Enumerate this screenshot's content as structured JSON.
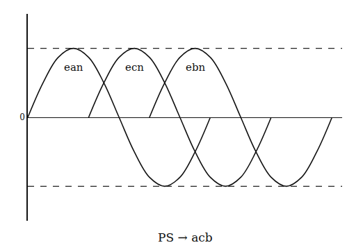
{
  "chart_data": {
    "type": "line",
    "annotation": "PS → acb",
    "xlim": [
      0,
      620
    ],
    "ylim": [
      -1.5,
      1.5
    ],
    "yticks": [
      0
    ],
    "tick_labels": "y",
    "grid": false,
    "series": [
      {
        "name": "ean",
        "color": "#111111",
        "x": [
          0,
          30,
          60,
          90,
          120,
          150,
          180,
          210,
          240,
          270,
          300,
          330,
          360
        ],
        "values": [
          0,
          0.5,
          0.87,
          1,
          0.87,
          0.5,
          0,
          -0.5,
          -0.87,
          -1,
          -0.87,
          -0.5,
          0
        ]
      },
      {
        "name": "ecn",
        "color": "#111111",
        "x": [
          120,
          150,
          180,
          210,
          240,
          270,
          300,
          330,
          360,
          390,
          420,
          450,
          480
        ],
        "values": [
          0,
          0.5,
          0.87,
          1,
          0.87,
          0.5,
          0,
          -0.5,
          -0.87,
          -1,
          -0.87,
          -0.5,
          0
        ]
      },
      {
        "name": "ebn",
        "color": "#111111",
        "x": [
          240,
          270,
          300,
          330,
          360,
          390,
          420,
          450,
          480,
          510,
          540,
          570,
          600
        ],
        "values": [
          0,
          0.5,
          0.87,
          1,
          0.87,
          0.5,
          0,
          -0.5,
          -0.87,
          -1,
          -0.87,
          -0.5,
          0
        ]
      }
    ]
  }
}
